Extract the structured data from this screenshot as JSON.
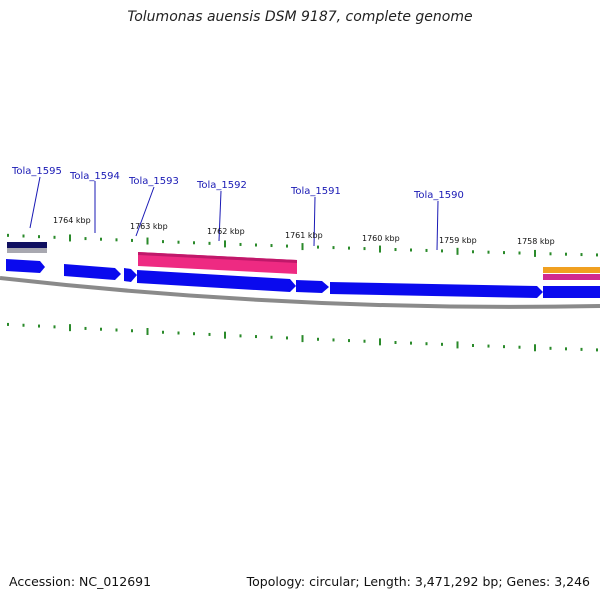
{
  "title": "Tolumonas auensis DSM 9187, complete genome",
  "accession_text": "Accession: NC_012691",
  "summary_text": "Topology: circular; Length: 3,471,292 bp; Genes: 3,246",
  "colors": {
    "gene": "#0a0aee",
    "gene_label": "#1a1ab5",
    "feature_pink": "#ee2a82",
    "feature_navy": "#101060",
    "feature_orange": "#f0a020",
    "backbone": "#808080",
    "tick": "#2a8a2a"
  },
  "gene_labels": [
    {
      "name": "Tola_1595"
    },
    {
      "name": "Tola_1594"
    },
    {
      "name": "Tola_1593"
    },
    {
      "name": "Tola_1592"
    },
    {
      "name": "Tola_1591"
    },
    {
      "name": "Tola_1590"
    }
  ],
  "kbp_labels": [
    "1764 kbp",
    "1763 kbp",
    "1762 kbp",
    "1761 kbp",
    "1760 kbp",
    "1759 kbp",
    "1758 kbp"
  ]
}
